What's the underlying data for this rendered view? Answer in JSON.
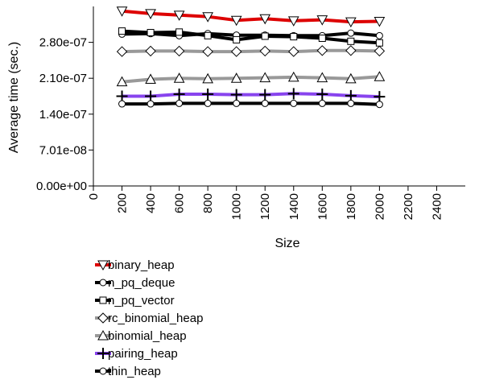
{
  "chart_data": {
    "type": "line",
    "xlabel": "Size",
    "ylabel": "Average time (sec.)",
    "xlim": [
      0,
      2600
    ],
    "ylim": [
      0,
      3.5e-07
    ],
    "x_ticks": [
      0,
      200,
      400,
      600,
      800,
      1000,
      1200,
      1400,
      1600,
      1800,
      2000,
      2200,
      2400
    ],
    "x_tick_labels": [
      "0",
      "200",
      "400",
      "600",
      "800",
      "1000",
      "1200",
      "1400",
      "1600",
      "1800",
      "2000",
      "2200",
      "2400"
    ],
    "y_ticks": [
      0,
      7.01e-08,
      1.4e-07,
      2.1e-07,
      2.8e-07
    ],
    "y_tick_labels": [
      "0.00e+00",
      "7.01e-08",
      "1.40e-07",
      "2.10e-07",
      "2.80e-07"
    ],
    "grid": false,
    "legend_position": "bottom-left",
    "x": [
      200,
      400,
      600,
      800,
      1000,
      1200,
      1400,
      1600,
      1800,
      2000
    ],
    "series": [
      {
        "name": "binary_heap",
        "color": "#dd0000",
        "marker": "triangle-down",
        "values": [
          3.41e-07,
          3.36e-07,
          3.33e-07,
          3.3e-07,
          3.23e-07,
          3.26e-07,
          3.22e-07,
          3.24e-07,
          3.2e-07,
          3.21e-07
        ]
      },
      {
        "name": "n_pq_deque",
        "color": "#000000",
        "marker": "circle",
        "values": [
          2.96e-07,
          2.97e-07,
          2.93e-07,
          2.97e-07,
          2.94e-07,
          2.94e-07,
          2.93e-07,
          2.93e-07,
          2.98e-07,
          2.93e-07
        ]
      },
      {
        "name": "n_pq_vector",
        "color": "#000000",
        "marker": "square",
        "values": [
          3.02e-07,
          2.99e-07,
          3e-07,
          2.93e-07,
          2.85e-07,
          2.92e-07,
          2.91e-07,
          2.88e-07,
          2.82e-07,
          2.79e-07
        ]
      },
      {
        "name": "rc_binomial_heap",
        "color": "#999999",
        "marker": "diamond",
        "values": [
          2.62e-07,
          2.63e-07,
          2.63e-07,
          2.62e-07,
          2.62e-07,
          2.63e-07,
          2.62e-07,
          2.64e-07,
          2.64e-07,
          2.63e-07
        ]
      },
      {
        "name": "binomial_heap",
        "color": "#999999",
        "marker": "triangle-up",
        "values": [
          2.03e-07,
          2.08e-07,
          2.1e-07,
          2.09e-07,
          2.1e-07,
          2.11e-07,
          2.12e-07,
          2.11e-07,
          2.09e-07,
          2.13e-07
        ]
      },
      {
        "name": "pairing_heap",
        "color": "#8844ee",
        "marker": "plus",
        "values": [
          1.75e-07,
          1.75e-07,
          1.79e-07,
          1.79e-07,
          1.78e-07,
          1.78e-07,
          1.8e-07,
          1.79e-07,
          1.76e-07,
          1.74e-07
        ]
      },
      {
        "name": "thin_heap",
        "color": "#000000",
        "marker": "circle",
        "values": [
          1.6e-07,
          1.6e-07,
          1.61e-07,
          1.61e-07,
          1.61e-07,
          1.61e-07,
          1.61e-07,
          1.61e-07,
          1.61e-07,
          1.59e-07
        ]
      }
    ]
  }
}
